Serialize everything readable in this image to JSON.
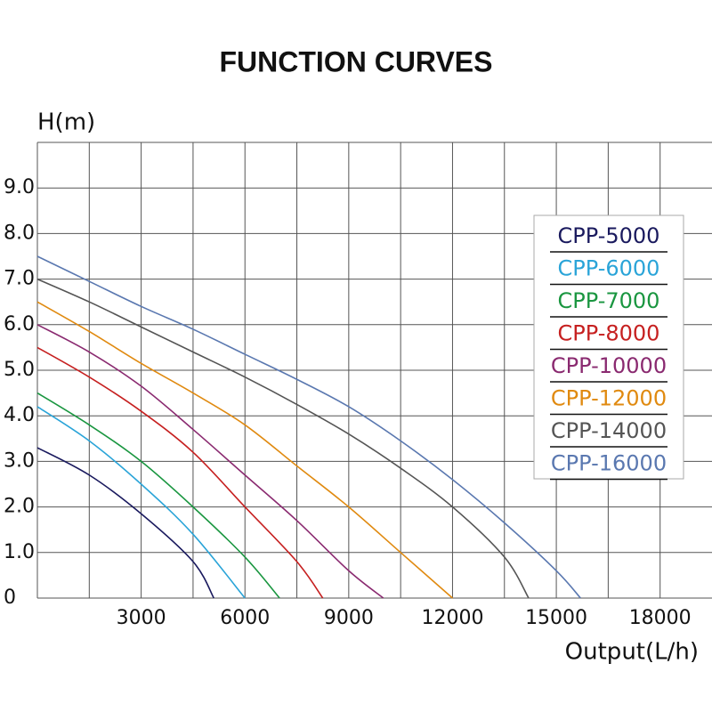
{
  "chart_data": {
    "type": "line",
    "title": "FUNCTION CURVES",
    "y_label": "H(m)",
    "x_label": "Output(L/h)",
    "xlim": [
      0,
      19500
    ],
    "ylim": [
      0,
      10
    ],
    "xticks": [
      3000,
      6000,
      9000,
      12000,
      15000,
      18000
    ],
    "xgrid": [
      1500,
      3000,
      4500,
      6000,
      7500,
      9000,
      10500,
      12000,
      13500,
      15000,
      16500,
      18000
    ],
    "yticks": [
      0,
      {
        "value": 1,
        "label": "1.0"
      },
      {
        "value": 2,
        "label": "2.0"
      },
      {
        "value": 3,
        "label": "3.0"
      },
      {
        "value": 4,
        "label": "4.0"
      },
      {
        "value": 5,
        "label": "5.0"
      },
      {
        "value": 6,
        "label": "6.0"
      },
      {
        "value": 7,
        "label": "7.0"
      },
      {
        "value": 8,
        "label": "8.0"
      },
      {
        "value": 9,
        "label": "9.0"
      }
    ],
    "grid": true,
    "legend": "right",
    "series": [
      {
        "name": "CPP-5000",
        "color": "#1a1a5e",
        "x": [
          0,
          1500,
          3000,
          4500,
          5100
        ],
        "values": [
          3.3,
          2.7,
          1.85,
          0.8,
          0
        ]
      },
      {
        "name": "CPP-6000",
        "color": "#2aa4d8",
        "x": [
          0,
          1500,
          3000,
          4500,
          6000
        ],
        "values": [
          4.2,
          3.45,
          2.5,
          1.4,
          0
        ]
      },
      {
        "name": "CPP-7000",
        "color": "#1a9640",
        "x": [
          0,
          1500,
          3000,
          4500,
          6000,
          7000
        ],
        "values": [
          4.5,
          3.8,
          3.0,
          2.0,
          0.9,
          0
        ]
      },
      {
        "name": "CPP-8000",
        "color": "#c62020",
        "x": [
          0,
          1500,
          3000,
          4500,
          6000,
          7500,
          8250
        ],
        "values": [
          5.5,
          4.85,
          4.1,
          3.2,
          2.0,
          0.8,
          0
        ]
      },
      {
        "name": "CPP-10000",
        "color": "#8a2a70",
        "x": [
          0,
          1500,
          3000,
          4500,
          6000,
          7500,
          9000,
          10000
        ],
        "values": [
          6.0,
          5.4,
          4.65,
          3.7,
          2.7,
          1.7,
          0.6,
          0
        ]
      },
      {
        "name": "CPP-12000",
        "color": "#e08a10",
        "x": [
          0,
          1500,
          3000,
          4500,
          6000,
          7500,
          9000,
          10500,
          12000
        ],
        "values": [
          6.5,
          5.85,
          5.15,
          4.5,
          3.8,
          2.9,
          2.0,
          1.0,
          0
        ]
      },
      {
        "name": "CPP-14000",
        "color": "#555555",
        "x": [
          0,
          1500,
          3000,
          4500,
          6000,
          7500,
          9000,
          10500,
          12000,
          13500,
          14200
        ],
        "values": [
          7.0,
          6.5,
          5.95,
          5.4,
          4.85,
          4.25,
          3.6,
          2.85,
          2.0,
          0.9,
          0
        ]
      },
      {
        "name": "CPP-16000",
        "color": "#5a78b0",
        "x": [
          0,
          1500,
          3000,
          4500,
          6000,
          7500,
          9000,
          10500,
          12000,
          13500,
          15000,
          15700
        ],
        "values": [
          7.5,
          6.95,
          6.4,
          5.9,
          5.35,
          4.8,
          4.2,
          3.45,
          2.6,
          1.65,
          0.6,
          0
        ]
      }
    ]
  }
}
